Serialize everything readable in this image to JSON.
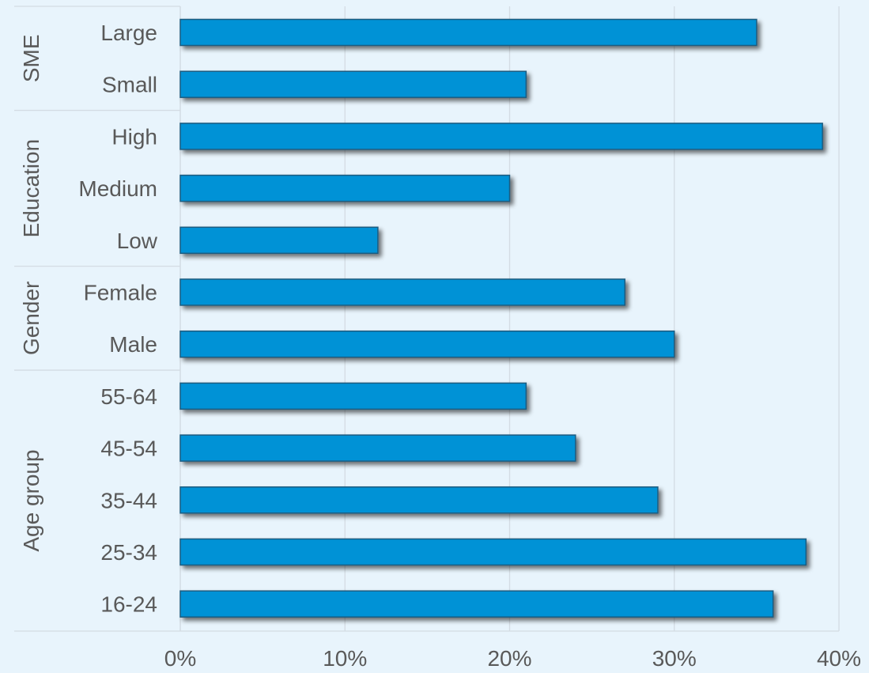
{
  "chart_data": {
    "type": "bar",
    "orientation": "horizontal",
    "groups": [
      {
        "name": "SME",
        "categories": [
          "Large",
          "Small"
        ],
        "values": [
          35,
          21
        ]
      },
      {
        "name": "Education",
        "categories": [
          "High",
          "Medium",
          "Low"
        ],
        "values": [
          39,
          20,
          12
        ]
      },
      {
        "name": "Gender",
        "categories": [
          "Female",
          "Male"
        ],
        "values": [
          27,
          30
        ]
      },
      {
        "name": "Age group",
        "categories": [
          "55-64",
          "45-54",
          "35-44",
          "25-34",
          "16-24"
        ],
        "values": [
          21,
          24,
          29,
          38,
          36
        ]
      }
    ],
    "xlim": [
      0,
      40
    ],
    "xticks": [
      "0%",
      "10%",
      "20%",
      "30%",
      "40%"
    ],
    "grid": true,
    "title": "",
    "xlabel": "",
    "ylabel": "",
    "bar_color": "#0092d6",
    "bar_border_color": "#1f5c80"
  }
}
